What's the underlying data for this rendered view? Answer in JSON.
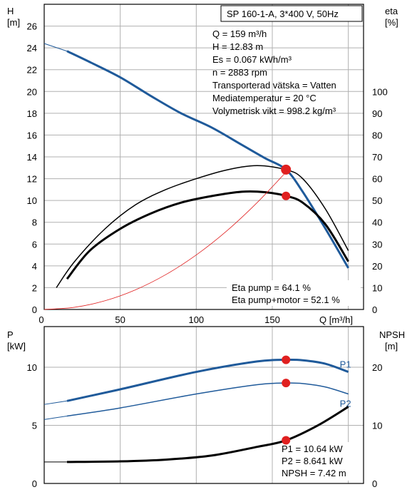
{
  "chart_data": [
    {
      "type": "line",
      "title": "SP 160-1-A, 3*400 V, 50Hz",
      "ylabel_left": [
        "H",
        "[m]"
      ],
      "ylabel_right": [
        "eta",
        "[%]"
      ],
      "xlabel": "Q [m³/h]",
      "xlim": [
        0,
        210
      ],
      "ylim": [
        0,
        28
      ],
      "ylim_right": [
        0,
        140
      ],
      "x_ticks": [
        "0",
        "50",
        "100",
        "150"
      ],
      "y_ticks": [
        "0",
        "2",
        "4",
        "6",
        "8",
        "10",
        "12",
        "14",
        "16",
        "18",
        "20",
        "22",
        "24",
        "26"
      ],
      "y_right_ticks": [
        "0",
        "10",
        "20",
        "30",
        "40",
        "50",
        "60",
        "70",
        "80",
        "90",
        "100"
      ],
      "grid": true,
      "info_lines": [
        "Q = 159 m³/h",
        "H = 12.83 m",
        "Es = 0.067 kWh/m³",
        "n = 2883 rpm",
        "Transporterad vätska = Vatten",
        "Mediatemperatur = 20 °C",
        "Volymetrisk vikt = 998.2 kg/m³"
      ],
      "eta_lines": [
        "Eta pump = 64.1 %",
        "Eta pump+motor = 52.1 %"
      ],
      "series": [
        {
          "axis": "left",
          "color": "#1f5a9a",
          "x": [
            0,
            15,
            30,
            50,
            70,
            90,
            110,
            130,
            145,
            159,
            170,
            185,
            200
          ],
          "y": [
            24.4,
            23.7,
            22.7,
            21.3,
            19.6,
            18.0,
            16.7,
            15.1,
            13.9,
            12.83,
            10.8,
            7.4,
            3.8
          ]
        },
        {
          "axis": "right",
          "color": "#000000",
          "x": [
            8,
            20,
            40,
            60,
            80,
            100,
            120,
            140,
            159,
            170,
            185,
            200
          ],
          "y": [
            10,
            22,
            37,
            48,
            55,
            60,
            64,
            66,
            64.1,
            60,
            46,
            27
          ]
        },
        {
          "axis": "right",
          "color": "#000000",
          "x": [
            15,
            30,
            50,
            70,
            90,
            110,
            130,
            145,
            159,
            170,
            185,
            200
          ],
          "y": [
            14,
            27,
            37,
            44,
            49,
            52,
            54,
            53.8,
            52.1,
            49,
            39,
            22
          ]
        },
        {
          "axis": "left",
          "color": "#e02020",
          "x": [
            0,
            20,
            40,
            60,
            80,
            100,
            120,
            140,
            159
          ],
          "y": [
            0,
            0.2,
            0.8,
            1.8,
            3.2,
            5.0,
            7.2,
            9.8,
            12.6
          ]
        }
      ],
      "points": [
        {
          "x": 159,
          "y": 12.83,
          "axis": "left",
          "color": "#e02020"
        },
        {
          "x": 159,
          "y": 52.1,
          "axis": "right",
          "color": "#e02020"
        }
      ]
    },
    {
      "type": "line",
      "ylabel_left": [
        "P",
        "[kW]"
      ],
      "ylabel_right": [
        "NPSH",
        "[m]"
      ],
      "xlim": [
        0,
        210
      ],
      "ylim": [
        0,
        13.5
      ],
      "ylim_right": [
        0,
        27
      ],
      "y_ticks": [
        "0",
        "5",
        "10"
      ],
      "y_right_ticks": [
        "0",
        "10",
        "20"
      ],
      "grid": true,
      "p_lines": [
        "P1 = 10.64 kW",
        "P2 = 8.641 kW",
        "NPSH = 7.42 m"
      ],
      "series": [
        {
          "name": "P1",
          "axis": "left",
          "color": "#1f5a9a",
          "x": [
            0,
            15,
            50,
            100,
            140,
            159,
            170,
            185,
            200
          ],
          "y": [
            6.8,
            7.1,
            8.1,
            9.6,
            10.5,
            10.64,
            10.6,
            10.3,
            9.6
          ]
        },
        {
          "name": "P2",
          "axis": "left",
          "color": "#1f5a9a",
          "x": [
            0,
            15,
            50,
            100,
            140,
            159,
            170,
            185,
            200
          ],
          "y": [
            5.5,
            5.8,
            6.5,
            7.7,
            8.5,
            8.641,
            8.6,
            8.3,
            7.7
          ]
        },
        {
          "axis": "right",
          "color": "#000000",
          "x": [
            0,
            15,
            50,
            80,
            110,
            140,
            159,
            180,
            200
          ],
          "y": [
            3.7,
            3.7,
            3.8,
            4.1,
            4.8,
            6.3,
            7.42,
            10.0,
            13.2
          ]
        }
      ],
      "points": [
        {
          "x": 159,
          "y": 10.64,
          "axis": "left",
          "color": "#e02020"
        },
        {
          "x": 159,
          "y": 8.641,
          "axis": "left",
          "color": "#e02020"
        },
        {
          "x": 159,
          "y": 7.42,
          "axis": "right",
          "color": "#e02020"
        }
      ]
    }
  ]
}
